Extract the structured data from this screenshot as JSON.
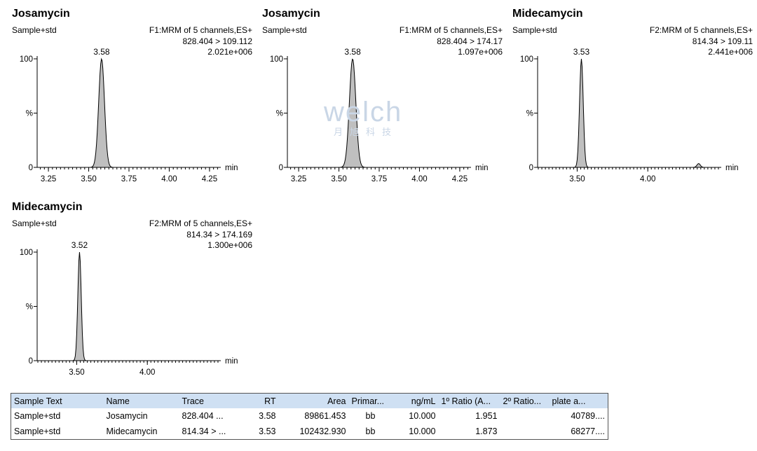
{
  "panels": [
    {
      "title": "Josamycin",
      "sample": "Sample+std",
      "info_line1": "F1:MRM of 5 channels,ES+",
      "info_line2": "828.404 > 109.112",
      "info_line3": "2.021e+006",
      "peak_label": "3.58",
      "peak_rt": 3.58,
      "peak_sigma": 0.018,
      "x_range": [
        3.18,
        4.32
      ],
      "x_ticks": [
        "3.25",
        "3.50",
        "3.75",
        "4.00",
        "4.25"
      ],
      "y_ticks": [
        "100",
        "%",
        "0"
      ],
      "x_unit": "min",
      "minor_peaks": []
    },
    {
      "title": "Josamycin",
      "sample": "Sample+std",
      "info_line1": "F1:MRM of 5 channels,ES+",
      "info_line2": "828.404 > 174.17",
      "info_line3": "1.097e+006",
      "peak_label": "3.58",
      "peak_rt": 3.585,
      "peak_sigma": 0.02,
      "x_range": [
        3.18,
        4.32
      ],
      "x_ticks": [
        "3.25",
        "3.50",
        "3.75",
        "4.00",
        "4.25"
      ],
      "y_ticks": [
        "100",
        "%",
        "0"
      ],
      "x_unit": "min",
      "minor_peaks": []
    },
    {
      "title": "Midecamycin",
      "sample": "Sample+std",
      "info_line1": "F2:MRM of 5 channels,ES+",
      "info_line2": "814.34 > 109.11",
      "info_line3": "2.441e+006",
      "peak_label": "3.53",
      "peak_rt": 3.53,
      "peak_sigma": 0.013,
      "x_range": [
        3.22,
        4.52
      ],
      "x_ticks": [
        "3.50",
        "4.00"
      ],
      "y_ticks": [
        "100",
        "%",
        "0"
      ],
      "x_unit": "min",
      "minor_peaks": [
        {
          "rt": 4.36,
          "height": 0.035,
          "sigma": 0.012
        }
      ]
    },
    {
      "title": "Midecamycin",
      "sample": "Sample+std",
      "info_line1": "F2:MRM of 5 channels,ES+",
      "info_line2": "814.34 > 174.169",
      "info_line3": "1.300e+006",
      "peak_label": "3.52",
      "peak_rt": 3.52,
      "peak_sigma": 0.012,
      "x_range": [
        3.22,
        4.52
      ],
      "x_ticks": [
        "3.50",
        "4.00"
      ],
      "y_ticks": [
        "100",
        "%",
        "0"
      ],
      "x_unit": "min",
      "minor_peaks": []
    }
  ],
  "watermark": {
    "logo": "welch",
    "sub": "月旭科技"
  },
  "table": {
    "headers": [
      "Sample Text",
      "Name",
      "Trace",
      "RT",
      "Area",
      "Primar...",
      "ng/mL",
      "1º Ratio (A...",
      "2º Ratio...",
      "plate a..."
    ],
    "rows": [
      [
        "Sample+std",
        "Josamycin",
        "828.404 ...",
        "3.58",
        "89861.453",
        "bb",
        "10.000",
        "1.951",
        "",
        "40789...."
      ],
      [
        "Sample+std",
        "Midecamycin",
        "814.34 > ...",
        "3.53",
        "102432.930",
        "bb",
        "10.000",
        "1.873",
        "",
        "68277...."
      ]
    ]
  },
  "colors": {
    "peak_fill": "#bfbfbf",
    "header_bg": "#cfe0f3",
    "watermark": "#c9d6e6"
  }
}
